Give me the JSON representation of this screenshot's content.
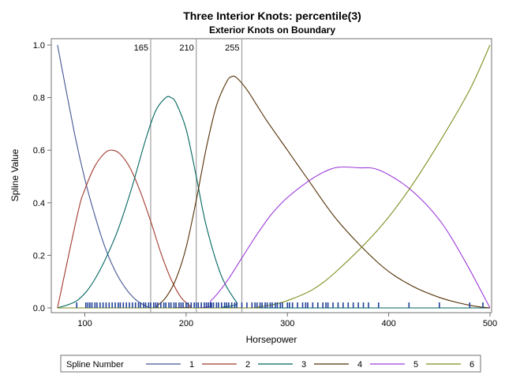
{
  "chart_data": {
    "type": "line",
    "title": "Three Interior Knots: percentile(3)",
    "subtitle": "Exterior Knots on Boundary",
    "xlabel": "Horsepower",
    "ylabel": "Spline Value",
    "xlim": [
      70,
      500
    ],
    "ylim": [
      0,
      1
    ],
    "xticks": [
      100,
      200,
      300,
      400,
      500
    ],
    "yticks": [
      0.0,
      0.2,
      0.4,
      0.6,
      0.8,
      1.0
    ],
    "xtick_labels": [
      "100",
      "200",
      "300",
      "400",
      "500"
    ],
    "ytick_labels": [
      "0.0",
      "0.2",
      "0.4",
      "0.6",
      "0.8",
      "1.0"
    ],
    "grid": false,
    "knots": [
      {
        "x": 165,
        "label": "165"
      },
      {
        "x": 210,
        "label": "210"
      },
      {
        "x": 255,
        "label": "255"
      }
    ],
    "legend": {
      "title": "Spline Number",
      "position": "bottom",
      "entries": [
        "1",
        "2",
        "3",
        "4",
        "5",
        "6"
      ]
    },
    "series": [
      {
        "name": "1",
        "color": "#445694",
        "x": [
          73,
          90,
          100,
          110,
          120,
          130,
          140,
          150,
          160,
          165,
          175,
          190,
          210,
          500
        ],
        "y": [
          1.0,
          0.66,
          0.49,
          0.35,
          0.23,
          0.14,
          0.076,
          0.032,
          0.008,
          0.0,
          0.0,
          0.0,
          0.0,
          0.0
        ]
      },
      {
        "name": "2",
        "color": "#a23a2e",
        "x": [
          73,
          93,
          100,
          110,
          120,
          127,
          135,
          145,
          155,
          165,
          175,
          185,
          195,
          205,
          210,
          500
        ],
        "y": [
          0.0,
          0.36,
          0.45,
          0.54,
          0.59,
          0.6,
          0.585,
          0.53,
          0.44,
          0.33,
          0.21,
          0.11,
          0.04,
          0.005,
          0.0,
          0.0
        ]
      },
      {
        "name": "3",
        "color": "#01665e",
        "x": [
          73,
          93,
          110,
          130,
          145,
          160,
          170,
          180,
          185,
          190,
          200,
          210,
          220,
          235,
          250,
          255,
          500
        ],
        "y": [
          0.0,
          0.03,
          0.11,
          0.27,
          0.44,
          0.64,
          0.75,
          0.8,
          0.8,
          0.78,
          0.68,
          0.5,
          0.31,
          0.12,
          0.02,
          0.0,
          0.0
        ]
      },
      {
        "name": "4",
        "color": "#543005",
        "x": [
          73,
          165,
          170,
          180,
          190,
          200,
          210,
          220,
          230,
          240,
          245,
          250,
          260,
          270,
          280,
          300,
          320,
          350,
          390,
          420,
          450,
          480,
          500
        ],
        "y": [
          0.0,
          0.0,
          0.005,
          0.04,
          0.11,
          0.23,
          0.41,
          0.61,
          0.77,
          0.86,
          0.88,
          0.875,
          0.83,
          0.77,
          0.71,
          0.6,
          0.49,
          0.33,
          0.17,
          0.09,
          0.04,
          0.01,
          0.0
        ]
      },
      {
        "name": "5",
        "color": "#9d3cdb",
        "x": [
          73,
          210,
          225,
          240,
          255,
          270,
          285,
          300,
          320,
          335,
          350,
          370,
          390,
          420,
          450,
          475,
          500
        ],
        "y": [
          0.0,
          0.0,
          0.03,
          0.1,
          0.19,
          0.28,
          0.36,
          0.42,
          0.48,
          0.515,
          0.535,
          0.533,
          0.525,
          0.455,
          0.335,
          0.18,
          0.0
        ]
      },
      {
        "name": "6",
        "color": "#7f8e1f",
        "x": [
          73,
          255,
          270,
          285,
          300,
          325,
          350,
          390,
          420,
          450,
          480,
          500
        ],
        "y": [
          0.0,
          0.0,
          0.003,
          0.012,
          0.028,
          0.07,
          0.145,
          0.3,
          0.45,
          0.63,
          0.83,
          1.0
        ]
      }
    ],
    "rug_x": [
      92,
      101,
      103,
      105,
      107,
      110,
      112,
      115,
      118,
      121,
      124,
      127,
      130,
      133,
      135,
      138,
      141,
      144,
      147,
      150,
      153,
      155,
      158,
      160,
      163,
      165,
      168,
      170,
      172,
      175,
      178,
      180,
      183,
      185,
      188,
      190,
      193,
      195,
      197,
      200,
      202,
      205,
      208,
      210,
      212,
      215,
      218,
      220,
      222,
      224,
      225,
      227,
      230,
      232,
      235,
      238,
      240,
      242,
      245,
      248,
      250,
      255,
      260,
      265,
      268,
      270,
      273,
      275,
      278,
      280,
      283,
      285,
      288,
      290,
      293,
      295,
      300,
      302,
      305,
      310,
      315,
      318,
      320,
      325,
      330,
      335,
      338,
      340,
      345,
      350,
      355,
      360,
      365,
      370,
      375,
      380,
      390,
      420,
      450,
      480,
      493
    ],
    "rug_color": "#1f3f99"
  }
}
